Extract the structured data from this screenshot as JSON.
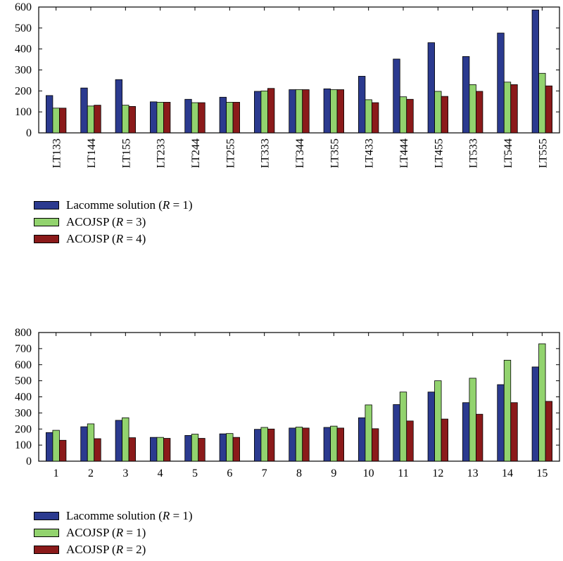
{
  "colors": {
    "series_1": "#2b3a8f",
    "series_2": "#92d36e",
    "series_3": "#8b1a1a",
    "axis": "#000000"
  },
  "chart_data": [
    {
      "type": "bar",
      "categories": [
        "LT133",
        "LT144",
        "LT155",
        "LT233",
        "LT244",
        "LT255",
        "LT333",
        "LT344",
        "LT355",
        "LT433",
        "LT444",
        "LT455",
        "LT533",
        "LT544",
        "LT555"
      ],
      "series": [
        {
          "name": "Lacomme solution (R = 1)",
          "name_prefix": "Lacomme solution (",
          "name_var": "R",
          "name_suffix": " = 1)",
          "values": [
            178,
            214,
            254,
            148,
            160,
            170,
            198,
            206,
            210,
            270,
            352,
            430,
            364,
            476,
            586
          ]
        },
        {
          "name": "ACOJSP (R = 3)",
          "name_prefix": "ACOJSP (",
          "name_var": "R",
          "name_suffix": " = 3)",
          "values": [
            118,
            128,
            132,
            146,
            144,
            146,
            200,
            206,
            206,
            158,
            172,
            198,
            230,
            242,
            284
          ]
        },
        {
          "name": "ACOJSP (R = 4)",
          "name_prefix": "ACOJSP (",
          "name_var": "R",
          "name_suffix": " = 4)",
          "values": [
            118,
            132,
            126,
            146,
            144,
            146,
            212,
            206,
            206,
            144,
            160,
            174,
            198,
            230,
            224
          ]
        }
      ],
      "ylim": [
        0,
        600
      ],
      "yticks": [
        0,
        100,
        200,
        300,
        400,
        500,
        600
      ],
      "xlabel": "",
      "ylabel": "",
      "title": "",
      "grid": false,
      "tick_label_rotation": "vertical"
    },
    {
      "type": "bar",
      "categories": [
        "1",
        "2",
        "3",
        "4",
        "5",
        "6",
        "7",
        "8",
        "9",
        "10",
        "11",
        "12",
        "13",
        "14",
        "15"
      ],
      "series": [
        {
          "name": "Lacomme solution (R = 1)",
          "name_prefix": "Lacomme solution (",
          "name_var": "R",
          "name_suffix": " = 1)",
          "values": [
            178,
            214,
            254,
            148,
            160,
            170,
            198,
            206,
            210,
            270,
            352,
            430,
            364,
            476,
            586
          ]
        },
        {
          "name": "ACOJSP (R = 1)",
          "name_prefix": "ACOJSP (",
          "name_var": "R",
          "name_suffix": " = 1)",
          "values": [
            192,
            232,
            270,
            148,
            168,
            172,
            210,
            212,
            218,
            350,
            430,
            500,
            516,
            628,
            730
          ]
        },
        {
          "name": "ACOJSP (R = 2)",
          "name_prefix": "ACOJSP (",
          "name_var": "R",
          "name_suffix": " = 2)",
          "values": [
            130,
            140,
            146,
            142,
            142,
            148,
            200,
            206,
            206,
            202,
            250,
            262,
            292,
            364,
            372
          ]
        }
      ],
      "ylim": [
        0,
        800
      ],
      "yticks": [
        0,
        100,
        200,
        300,
        400,
        500,
        600,
        700,
        800
      ],
      "xlabel": "",
      "ylabel": "",
      "title": "",
      "grid": false,
      "tick_label_rotation": "horizontal"
    }
  ]
}
